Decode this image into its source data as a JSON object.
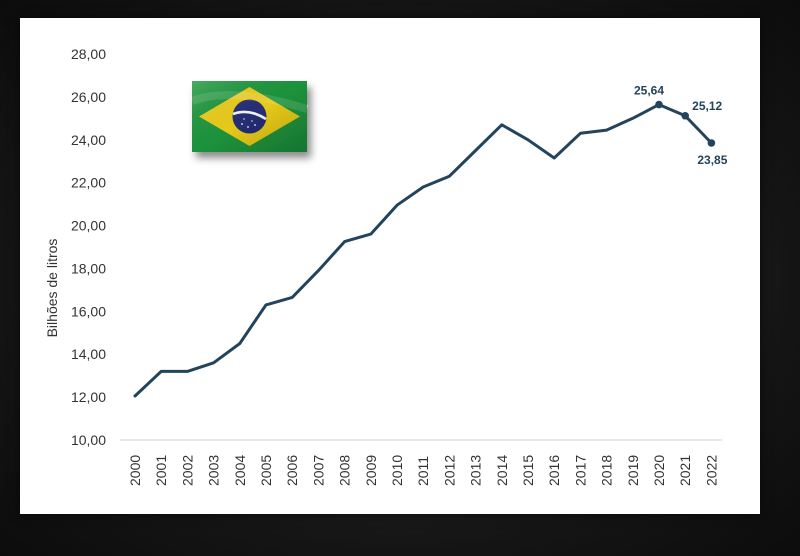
{
  "colors": {
    "line": "#24445c",
    "axis": "#cfcfcf",
    "text": "#333333",
    "flag_green": "#1f9a3f",
    "flag_yellow": "#f2d31b",
    "flag_blue": "#27307a"
  },
  "icons": {
    "flag": "brazil-flag-icon"
  },
  "chart_data": {
    "type": "line",
    "ylabel": "Bilhões de litros",
    "xlabel": "",
    "ylim": [
      10,
      28
    ],
    "yticks": [
      "10,00",
      "12,00",
      "14,00",
      "16,00",
      "18,00",
      "20,00",
      "22,00",
      "24,00",
      "26,00",
      "28,00"
    ],
    "ytick_values": [
      10,
      12,
      14,
      16,
      18,
      20,
      22,
      24,
      26,
      28
    ],
    "categories": [
      "2000",
      "2001",
      "2002",
      "2003",
      "2004",
      "2005",
      "2006",
      "2007",
      "2008",
      "2009",
      "2010",
      "2011",
      "2012",
      "2013",
      "2014",
      "2015",
      "2016",
      "2017",
      "2018",
      "2019",
      "2020",
      "2021",
      "2022"
    ],
    "series": [
      {
        "values": [
          12.05,
          13.2,
          13.2,
          13.6,
          14.5,
          16.3,
          16.65,
          17.9,
          19.25,
          19.6,
          20.95,
          21.8,
          22.3,
          23.5,
          24.7,
          24.0,
          23.15,
          24.3,
          24.45,
          25.0,
          25.64,
          25.12,
          23.85
        ]
      }
    ],
    "annotations": [
      {
        "year": "2020",
        "value": 25.64,
        "label": "25,64"
      },
      {
        "year": "2021",
        "value": 25.12,
        "label": "25,12"
      },
      {
        "year": "2022",
        "value": 23.85,
        "label": "23,85"
      }
    ],
    "grid": false
  }
}
